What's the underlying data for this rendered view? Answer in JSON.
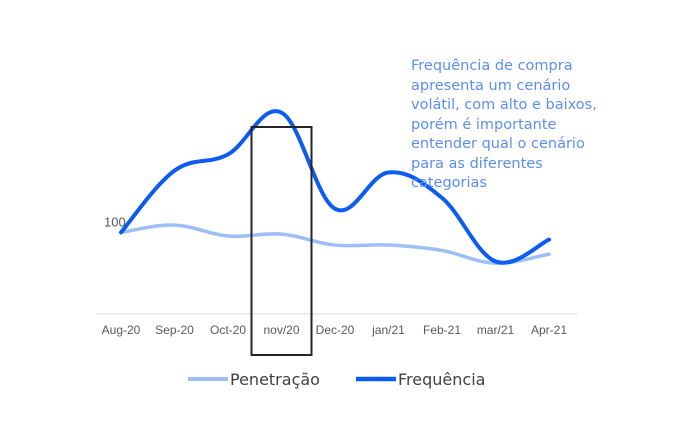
{
  "chart_data": {
    "type": "line",
    "categories": [
      "Aug-20",
      "Sep-20",
      "Oct-20",
      "nov/20",
      "Dec-20",
      "jan/21",
      "Feb-21",
      "mar/21",
      "Apr-21"
    ],
    "series": [
      {
        "name": "Penetração",
        "color": "#9dbef7",
        "values": [
          100,
          104,
          98,
          99,
          93,
          93,
          90,
          83,
          88
        ]
      },
      {
        "name": "Frequência",
        "color": "#0d5cf0",
        "values": [
          100,
          134,
          143,
          166,
          113,
          133,
          119,
          84,
          96
        ]
      }
    ],
    "y_labels": [
      {
        "value": 100,
        "text": "100"
      }
    ],
    "ylim": [
      55,
      195
    ],
    "grid": false,
    "legend_position": "bottom",
    "highlight": {
      "category": "nov/20"
    },
    "annotation": [
      "Frequência de compra",
      "apresenta um cenário",
      "volátil, com alto e baixos,",
      "porém é importante",
      "entender qual o cenário",
      "para as diferentes",
      "categorias"
    ]
  }
}
